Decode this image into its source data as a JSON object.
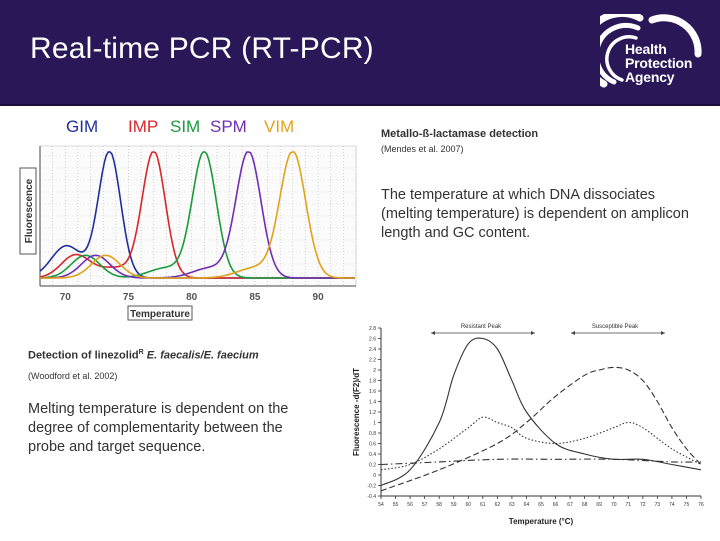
{
  "slide": {
    "title": "Real-time PCR (RT-PCR)",
    "logo": {
      "line1": "Health",
      "line2": "Protection",
      "line3": "Agency"
    }
  },
  "legend": [
    {
      "label": "GIM",
      "color": "#1e2f9e"
    },
    {
      "label": "IMP",
      "color": "#d8262a"
    },
    {
      "label": "SIM",
      "color": "#1a9b3c"
    },
    {
      "label": "SPM",
      "color": "#6f2fb2"
    },
    {
      "label": "VIM",
      "color": "#e1a21a"
    }
  ],
  "top_section": {
    "heading": "Metallo-ß-lactamase detection",
    "citation": "(Mendes et al. 2007)",
    "description": "The temperature at which DNA dissociates (melting temperature) is dependent on amplicon length and GC content."
  },
  "bottom_section": {
    "heading_prefix": "Detection of linezolid",
    "heading_superscript": "R",
    "heading_species": " E. faecalis/E. faecium",
    "citation": "(Woodford et al. 2002)",
    "description": "Melting temperature is dependent on the degree of complementarity between the probe and target sequence."
  },
  "chart_data": [
    {
      "type": "line",
      "xlabel": "Temperature",
      "ylabel": "Fluorescence",
      "xlim": [
        68,
        93
      ],
      "x_ticks": [
        "70",
        "75",
        "80",
        "85",
        "90"
      ],
      "series": [
        {
          "name": "GIM",
          "color": "#1e2f9e",
          "peak_temperature": 73.5
        },
        {
          "name": "IMP",
          "color": "#d8262a",
          "peak_temperature": 77
        },
        {
          "name": "SIM",
          "color": "#1a9b3c",
          "peak_temperature": 81
        },
        {
          "name": "SPM",
          "color": "#6f2fb2",
          "peak_temperature": 84.5
        },
        {
          "name": "VIM",
          "color": "#e1a21a",
          "peak_temperature": 88
        }
      ]
    },
    {
      "type": "line",
      "xlabel": "Temperature (°C)",
      "ylabel": "Fluorescence -d(F2)/dT",
      "xlim": [
        54,
        76
      ],
      "ylim": [
        -0.4,
        2.8
      ],
      "x_ticks": [
        "54",
        "55",
        "56",
        "57",
        "58",
        "59",
        "60",
        "61",
        "62",
        "63",
        "64",
        "65",
        "66",
        "67",
        "68",
        "69",
        "70",
        "71",
        "72",
        "73",
        "74",
        "75",
        "76"
      ],
      "y_ticks": [
        "2.8",
        "2.6",
        "2.4",
        "2.2",
        "2",
        "1.8",
        "1.6",
        "1.4",
        "1.2",
        "1",
        "0.8",
        "0.6",
        "0.4",
        "0.2",
        "0",
        "-0.2",
        "-0.4"
      ],
      "annotations": [
        "Resistant Peak",
        "Susceptible Peak"
      ],
      "series": [
        {
          "style": "solid",
          "x": [
            54,
            56,
            58,
            59,
            60,
            61,
            62,
            63,
            64,
            66,
            68,
            70,
            72,
            74,
            76
          ],
          "y": [
            -0.2,
            0.1,
            1.0,
            1.9,
            2.5,
            2.6,
            2.4,
            1.8,
            1.2,
            0.6,
            0.4,
            0.3,
            0.3,
            0.2,
            0.1
          ]
        },
        {
          "style": "dashed",
          "x": [
            54,
            58,
            62,
            64,
            66,
            68,
            69,
            70,
            71,
            72,
            73,
            74,
            75,
            76
          ],
          "y": [
            -0.3,
            0.1,
            0.6,
            1.0,
            1.5,
            1.9,
            2.0,
            2.05,
            2.0,
            1.8,
            1.4,
            0.9,
            0.5,
            0.2
          ]
        },
        {
          "style": "dotted",
          "x": [
            54,
            56,
            58,
            60,
            61,
            62,
            63,
            64,
            66,
            68,
            70,
            71,
            72,
            74,
            76
          ],
          "y": [
            0.1,
            0.2,
            0.5,
            0.9,
            1.1,
            1.0,
            0.9,
            0.7,
            0.6,
            0.7,
            0.9,
            1.0,
            0.9,
            0.5,
            0.2
          ]
        },
        {
          "style": "dashdot",
          "x": [
            54,
            58,
            62,
            66,
            70,
            74,
            76
          ],
          "y": [
            0.2,
            0.25,
            0.3,
            0.3,
            0.3,
            0.25,
            0.25
          ]
        }
      ]
    }
  ]
}
